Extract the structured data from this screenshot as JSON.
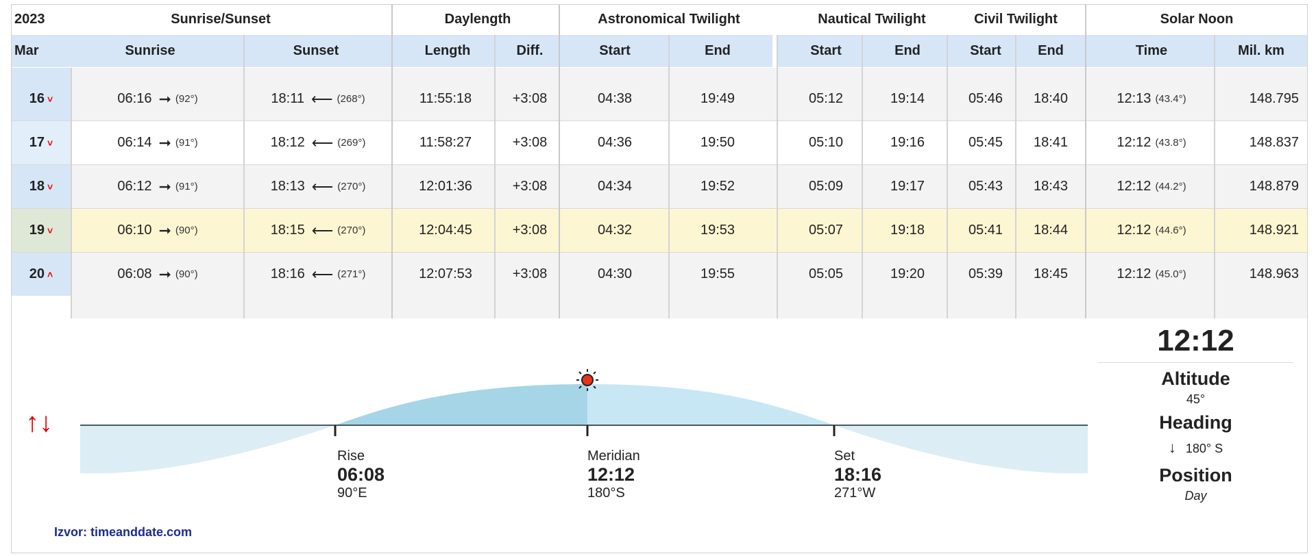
{
  "header": {
    "year": "2023",
    "groups": [
      "Sunrise/Sunset",
      "Daylength",
      "Astronomical Twilight",
      "Nautical Twilight",
      "Civil Twilight",
      "Solar Noon"
    ],
    "month": "Mar",
    "columns": [
      "Sunrise",
      "Sunset",
      "Length",
      "Diff.",
      "Start",
      "End",
      "Start",
      "End",
      "Start",
      "End",
      "Time",
      "Mil. km"
    ]
  },
  "rows": [
    {
      "day": "16",
      "chev": "˅",
      "sunrise": "06:16",
      "sunrise_az": "(92°)",
      "sunset": "18:11",
      "sunset_az": "(268°)",
      "length": "11:55:18",
      "diff": "+3:08",
      "astro_start": "04:38",
      "astro_end": "19:49",
      "naut_start": "05:12",
      "naut_end": "19:14",
      "civil_start": "05:46",
      "civil_end": "18:40",
      "noon": "12:13",
      "noon_alt": "(43.4°)",
      "mil_km": "148.795"
    },
    {
      "day": "17",
      "chev": "˅",
      "sunrise": "06:14",
      "sunrise_az": "(91°)",
      "sunset": "18:12",
      "sunset_az": "(269°)",
      "length": "11:58:27",
      "diff": "+3:08",
      "astro_start": "04:36",
      "astro_end": "19:50",
      "naut_start": "05:10",
      "naut_end": "19:16",
      "civil_start": "05:45",
      "civil_end": "18:41",
      "noon": "12:12",
      "noon_alt": "(43.8°)",
      "mil_km": "148.837"
    },
    {
      "day": "18",
      "chev": "˅",
      "sunrise": "06:12",
      "sunrise_az": "(91°)",
      "sunset": "18:13",
      "sunset_az": "(270°)",
      "length": "12:01:36",
      "diff": "+3:08",
      "astro_start": "04:34",
      "astro_end": "19:52",
      "naut_start": "05:09",
      "naut_end": "19:17",
      "civil_start": "05:43",
      "civil_end": "18:43",
      "noon": "12:12",
      "noon_alt": "(44.2°)",
      "mil_km": "148.879"
    },
    {
      "day": "19",
      "chev": "˅",
      "sunrise": "06:10",
      "sunrise_az": "(90°)",
      "sunset": "18:15",
      "sunset_az": "(270°)",
      "length": "12:04:45",
      "diff": "+3:08",
      "astro_start": "04:32",
      "astro_end": "19:53",
      "naut_start": "05:07",
      "naut_end": "19:18",
      "civil_start": "05:41",
      "civil_end": "18:44",
      "noon": "12:12",
      "noon_alt": "(44.6°)",
      "mil_km": "148.921"
    },
    {
      "day": "20",
      "chev": "˄",
      "sunrise": "06:08",
      "sunrise_az": "(90°)",
      "sunset": "18:16",
      "sunset_az": "(271°)",
      "length": "12:07:53",
      "diff": "+3:08",
      "astro_start": "04:30",
      "astro_end": "19:55",
      "naut_start": "05:05",
      "naut_end": "19:20",
      "civil_start": "05:39",
      "civil_end": "18:45",
      "noon": "12:12",
      "noon_alt": "(45.0°)",
      "mil_km": "148.963"
    }
  ],
  "sun_graph": {
    "toggle_arrows": "↑↓",
    "rise": {
      "label": "Rise",
      "time": "06:08",
      "dir": "90°E"
    },
    "meridian": {
      "label": "Meridian",
      "time": "12:12",
      "dir": "180°S"
    },
    "set": {
      "label": "Set",
      "time": "18:16",
      "dir": "271°W"
    }
  },
  "panel": {
    "time": "12:12",
    "altitude_label": "Altitude",
    "altitude_value": "45°",
    "heading_label": "Heading",
    "heading_value": "180° S",
    "position_label": "Position",
    "position_value": "Day"
  },
  "source": "Izvor: timeanddate.com",
  "colors": {
    "header_blue": "#d6e6f7",
    "highlight_row": "#fdf6d3",
    "row_gray": "#f3f3f3",
    "chevron_red": "#e00000",
    "source_blue": "#1b2d8f"
  }
}
